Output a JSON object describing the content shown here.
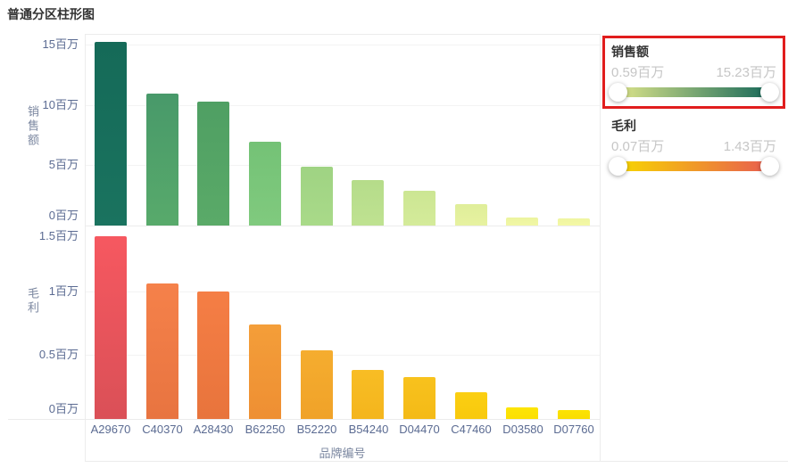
{
  "page_title": "普通分区柱形图",
  "chart_data": {
    "type": "bar",
    "categories": [
      "A29670",
      "C40370",
      "A28430",
      "B62250",
      "B52220",
      "B54240",
      "D04470",
      "C47460",
      "D03580",
      "D07760"
    ],
    "xlabel": "品牌编号",
    "grid": true,
    "panels": [
      {
        "ylabel": "销售额",
        "unit": "百万",
        "ylim": [
          0,
          15.9
        ],
        "yticks": [
          {
            "value": 15,
            "label": "15百万"
          },
          {
            "value": 10,
            "label": "10百万"
          },
          {
            "value": 5,
            "label": "5百万"
          },
          {
            "value": 0,
            "label": "0百万"
          }
        ],
        "series": [
          {
            "name": "销售额",
            "values": [
              15.23,
              10.9,
              10.25,
              6.95,
              4.9,
              3.8,
              2.86,
              1.75,
              0.67,
              0.59
            ]
          }
        ],
        "bar_colors": [
          [
            "#156a58",
            "#1a735f"
          ],
          [
            "#48996a",
            "#58aa6b"
          ],
          [
            "#4f9f63",
            "#5aaa68"
          ],
          [
            "#74c276",
            "#80ca7e"
          ],
          [
            "#9fd383",
            "#a9da89"
          ],
          [
            "#b5dc8a",
            "#bfe291"
          ],
          [
            "#cce693",
            "#d4eb9a"
          ],
          [
            "#dfee9a",
            "#e7f2a0"
          ],
          [
            "#ecf49f",
            "#f1f7a5"
          ],
          [
            "#eff5a1",
            "#f4f8a6"
          ]
        ]
      },
      {
        "ylabel": "毛利",
        "unit": "百万",
        "ylim": [
          0,
          1.51
        ],
        "yticks": [
          {
            "value": 1.5,
            "label": "1.5百万"
          },
          {
            "value": 1,
            "label": "1百万"
          },
          {
            "value": 0.5,
            "label": "0.5百万"
          },
          {
            "value": 0,
            "label": "0百万"
          }
        ],
        "series": [
          {
            "name": "毛利",
            "values": [
              1.43,
              1.06,
              1.0,
              0.74,
              0.54,
              0.38,
              0.33,
              0.21,
              0.09,
              0.07
            ]
          }
        ],
        "bar_colors": [
          [
            "#f65860",
            "#da5057"
          ],
          [
            "#f5814a",
            "#e87440"
          ],
          [
            "#f57e45",
            "#e8743c"
          ],
          [
            "#f49e39",
            "#ee8f33"
          ],
          [
            "#f5ad2f",
            "#f0a229"
          ],
          [
            "#f8bd24",
            "#f4b51d"
          ],
          [
            "#f8c21d",
            "#f4ba17"
          ],
          [
            "#fbcf12",
            "#f8c90d"
          ],
          [
            "#fde506",
            "#fbdf02"
          ],
          [
            "#fce303",
            "#f9dd00"
          ]
        ]
      }
    ]
  },
  "legend": [
    {
      "title": "销售额",
      "min_label": "0.59百万",
      "max_label": "15.23百万",
      "gradient": [
        "#dce48a",
        "#17695a"
      ],
      "selected": true,
      "highlight_color": "#e11d1d"
    },
    {
      "title": "毛利",
      "min_label": "0.07百万",
      "max_label": "1.43百万",
      "gradient": [
        "#f8d700",
        "#e85c50"
      ],
      "selected": false
    }
  ]
}
